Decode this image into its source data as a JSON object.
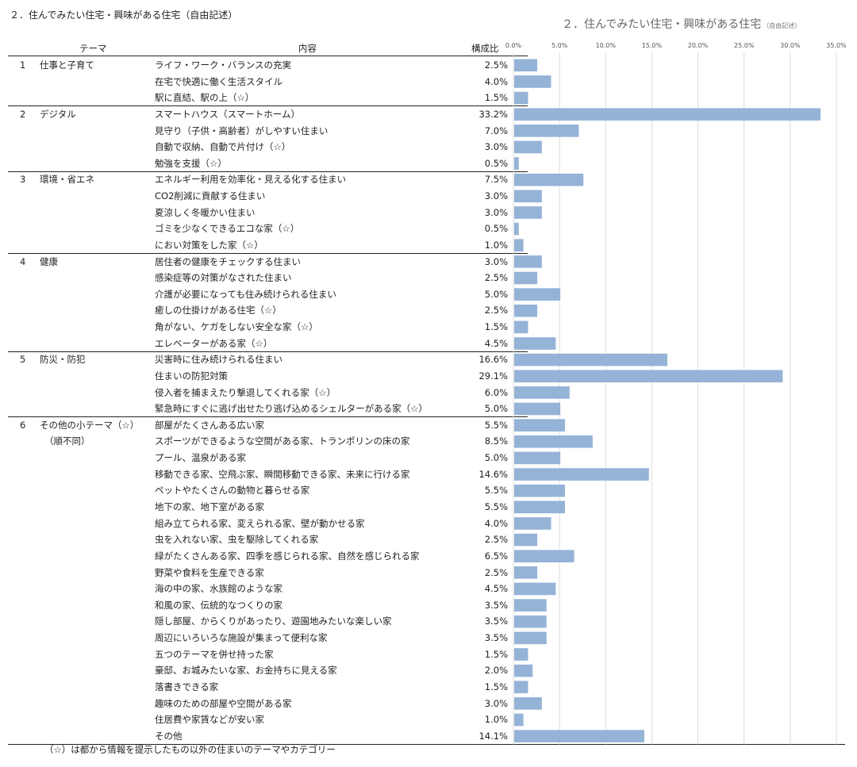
{
  "page_heading": "２．住んでみたい住宅・興味がある住宅（自由記述）",
  "footnote": "（☆）は都から情報を提示したもの以外の住まいのテーマやカテゴリー",
  "columns": {
    "theme": "テーマ",
    "content": "内容",
    "ratio": "構成比"
  },
  "chart_data": {
    "type": "bar",
    "orientation": "horizontal",
    "title": "２．住んでみたい住宅・興味がある住宅",
    "title_note": "（自由記述）",
    "xlim": [
      0,
      35
    ],
    "x_ticks": [
      "0.0%",
      "5.0%",
      "10.0%",
      "15.0%",
      "20.0%",
      "25.0%",
      "30.0%",
      "35.0%"
    ],
    "grid": true,
    "bar_color": "#95b3d7",
    "groups": [
      {
        "num": "1",
        "theme": "仕事と子育て",
        "items": [
          {
            "label": "ライフ・ワーク・バランスの充実",
            "value": 2.5,
            "display": "2.5%"
          },
          {
            "label": "在宅で快適に働く生活スタイル",
            "value": 4.0,
            "display": "4.0%"
          },
          {
            "label": "駅に直結、駅の上（☆）",
            "value": 1.5,
            "display": "1.5%"
          }
        ]
      },
      {
        "num": "2",
        "theme": "デジタル",
        "items": [
          {
            "label": "スマートハウス（スマートホーム）",
            "value": 33.2,
            "display": "33.2%"
          },
          {
            "label": "見守り（子供・高齢者）がしやすい住まい",
            "value": 7.0,
            "display": "7.0%"
          },
          {
            "label": "自動で収納、自動で片付け（☆）",
            "value": 3.0,
            "display": "3.0%"
          },
          {
            "label": "勉強を支援（☆）",
            "value": 0.5,
            "display": "0.5%"
          }
        ]
      },
      {
        "num": "3",
        "theme": "環境・省エネ",
        "items": [
          {
            "label": "エネルギー利用を効率化・見える化する住まい",
            "value": 7.5,
            "display": "7.5%"
          },
          {
            "label": "CO2削減に貢献する住まい",
            "value": 3.0,
            "display": "3.0%"
          },
          {
            "label": "夏涼しく冬暖かい住まい",
            "value": 3.0,
            "display": "3.0%"
          },
          {
            "label": "ゴミを少なくできるエコな家（☆）",
            "value": 0.5,
            "display": "0.5%"
          },
          {
            "label": "におい対策をした家（☆）",
            "value": 1.0,
            "display": "1.0%"
          }
        ]
      },
      {
        "num": "4",
        "theme": "健康",
        "items": [
          {
            "label": "居住者の健康をチェックする住まい",
            "value": 3.0,
            "display": "3.0%"
          },
          {
            "label": "感染症等の対策がなされた住まい",
            "value": 2.5,
            "display": "2.5%"
          },
          {
            "label": "介護が必要になっても住み続けられる住まい",
            "value": 5.0,
            "display": "5.0%"
          },
          {
            "label": "癒しの仕掛けがある住宅（☆）",
            "value": 2.5,
            "display": "2.5%"
          },
          {
            "label": "角がない、ケガをしない安全な家（☆）",
            "value": 1.5,
            "display": "1.5%"
          },
          {
            "label": "エレベーターがある家（☆）",
            "value": 4.5,
            "display": "4.5%"
          }
        ]
      },
      {
        "num": "5",
        "theme": "防災・防犯",
        "items": [
          {
            "label": "災害時に住み続けられる住まい",
            "value": 16.6,
            "display": "16.6%"
          },
          {
            "label": "住まいの防犯対策",
            "value": 29.1,
            "display": "29.1%"
          },
          {
            "label": "侵入者を捕まえたり撃退してくれる家（☆）",
            "value": 6.0,
            "display": "6.0%"
          },
          {
            "label": "緊急時にすぐに逃げ出せたり逃げ込めるシェルターがある家（☆）",
            "value": 5.0,
            "display": "5.0%"
          }
        ]
      },
      {
        "num": "6",
        "theme": "その他の小テーマ（☆）",
        "theme_sub": "（順不同）",
        "items": [
          {
            "label": "部屋がたくさんある広い家",
            "value": 5.5,
            "display": "5.5%"
          },
          {
            "label": "スポーツができるような空間がある家、トランポリンの床の家",
            "value": 8.5,
            "display": "8.5%"
          },
          {
            "label": "プール、温泉がある家",
            "value": 5.0,
            "display": "5.0%"
          },
          {
            "label": "移動できる家、空飛ぶ家、瞬間移動できる家、未来に行ける家",
            "value": 14.6,
            "display": "14.6%"
          },
          {
            "label": "ペットやたくさんの動物と暮らせる家",
            "value": 5.5,
            "display": "5.5%"
          },
          {
            "label": "地下の家、地下室がある家",
            "value": 5.5,
            "display": "5.5%"
          },
          {
            "label": "組み立てられる家、変えられる家、壁が動かせる家",
            "value": 4.0,
            "display": "4.0%"
          },
          {
            "label": "虫を入れない家、虫を駆除してくれる家",
            "value": 2.5,
            "display": "2.5%"
          },
          {
            "label": "緑がたくさんある家、四季を感じられる家、自然を感じられる家",
            "value": 6.5,
            "display": "6.5%"
          },
          {
            "label": "野菜や食料を生産できる家",
            "value": 2.5,
            "display": "2.5%"
          },
          {
            "label": "海の中の家、水族館のような家",
            "value": 4.5,
            "display": "4.5%"
          },
          {
            "label": "和風の家、伝統的なつくりの家",
            "value": 3.5,
            "display": "3.5%"
          },
          {
            "label": "隠し部屋、からくりがあったり、遊園地みたいな楽しい家",
            "value": 3.5,
            "display": "3.5%"
          },
          {
            "label": "周辺にいろいろな施設が集まって便利な家",
            "value": 3.5,
            "display": "3.5%"
          },
          {
            "label": "五つのテーマを併せ持った家",
            "value": 1.5,
            "display": "1.5%"
          },
          {
            "label": "豪邸、お城みたいな家、お金持ちに見える家",
            "value": 2.0,
            "display": "2.0%"
          },
          {
            "label": "落書きできる家",
            "value": 1.5,
            "display": "1.5%"
          },
          {
            "label": "趣味のための部屋や空間がある家",
            "value": 3.0,
            "display": "3.0%"
          },
          {
            "label": "住居費や家賃などが安い家",
            "value": 1.0,
            "display": "1.0%"
          },
          {
            "label": "その他",
            "value": 14.1,
            "display": "14.1%"
          }
        ]
      }
    ]
  }
}
